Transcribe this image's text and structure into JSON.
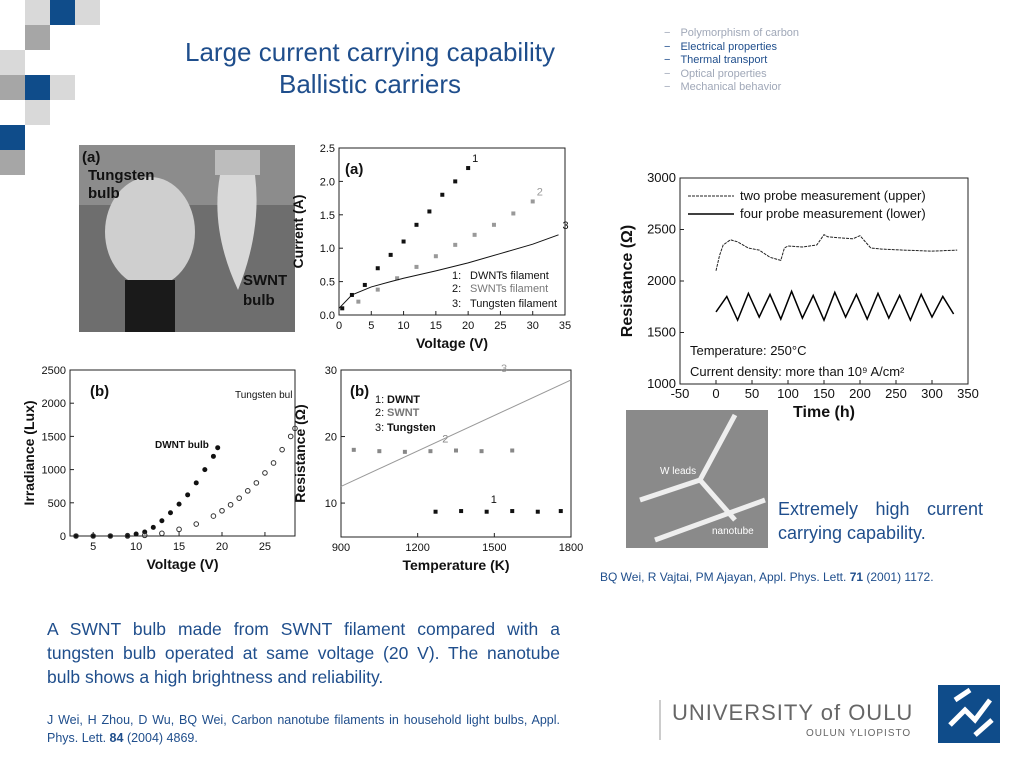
{
  "header": {
    "title_lines": [
      "Large current carrying capability",
      "Ballistic carriers"
    ]
  },
  "nav": {
    "bullet": "−",
    "items": [
      {
        "text": "Polymorphism of carbon",
        "active": false
      },
      {
        "text": "Electrical properties",
        "active": true
      },
      {
        "text": "Thermal transport",
        "active": true
      },
      {
        "text": "Optical properties",
        "active": false
      },
      {
        "text": "Mechanical behavior",
        "active": false
      }
    ]
  },
  "photo": {
    "panel": "(a)",
    "left_label": [
      "Tungsten",
      "bulb"
    ],
    "right_label": [
      "SWNT",
      "bulb"
    ]
  },
  "chart_data": [
    {
      "type": "line",
      "panel": "(a)",
      "x_label": "Voltage (V)",
      "y_label": "Current (A)",
      "xlim": [
        0,
        35
      ],
      "ylim": [
        0,
        2.5
      ],
      "xticks": [
        0,
        5,
        10,
        15,
        20,
        25,
        30,
        35
      ],
      "yticks": [
        {
          "value": 0,
          "label": "0.0"
        },
        0.5,
        {
          "value": 1,
          "label": "1.0"
        },
        1.5,
        {
          "value": 2,
          "label": "2.0"
        },
        2.5
      ],
      "series": [
        {
          "key": "1:",
          "name": "DWNTs filament",
          "curve_label": "1",
          "marker": "filled-square",
          "color": "#111111",
          "x": [
            0.5,
            2,
            4,
            6,
            8,
            10,
            12,
            14,
            16,
            18,
            20
          ],
          "values": [
            0.1,
            0.3,
            0.45,
            0.7,
            0.9,
            1.1,
            1.35,
            1.55,
            1.8,
            2.0,
            2.2
          ]
        },
        {
          "key": "2:",
          "name": "SWNTs filament",
          "curve_label": "2",
          "marker": "filled-square",
          "color": "#999999",
          "x": [
            3,
            6,
            9,
            12,
            15,
            18,
            21,
            24,
            27,
            30
          ],
          "values": [
            0.2,
            0.38,
            0.55,
            0.72,
            0.88,
            1.05,
            1.2,
            1.35,
            1.52,
            1.7
          ]
        },
        {
          "key": "3:",
          "name": "Tungsten filament",
          "curve_label": "3",
          "marker": "line",
          "color": "#111111",
          "x": [
            0,
            2,
            5,
            8,
            10,
            15,
            20,
            25,
            30,
            34
          ],
          "values": [
            0.1,
            0.3,
            0.42,
            0.5,
            0.55,
            0.66,
            0.78,
            0.92,
            1.06,
            1.2
          ]
        }
      ]
    },
    {
      "type": "line",
      "panel": "(b)",
      "x_label": "Voltage (V)",
      "y_label": "Irradiance (Lux)",
      "xlim": [
        2.3,
        28.5
      ],
      "ylim": [
        0,
        2500
      ],
      "xticks": [
        5,
        10,
        15,
        20,
        25
      ],
      "yticks": [
        0,
        500,
        1000,
        1500,
        2000,
        2500
      ],
      "series": [
        {
          "name": "DWNT bulb",
          "marker": "filled-circle",
          "color": "#111111",
          "x": [
            3,
            5,
            7,
            9,
            10,
            11,
            12,
            13,
            14,
            15,
            16,
            17,
            18,
            19,
            19.5
          ],
          "values": [
            0,
            0,
            0,
            10,
            30,
            60,
            130,
            230,
            350,
            480,
            620,
            800,
            1000,
            1200,
            1330
          ]
        },
        {
          "name": "Tungsten bul",
          "marker": "open-circle",
          "color": "#333333",
          "x": [
            3,
            5,
            7,
            9,
            11,
            13,
            15,
            17,
            19,
            20,
            21,
            22,
            23,
            24,
            25,
            26,
            27,
            28,
            28.5
          ],
          "values": [
            0,
            0,
            0,
            0,
            10,
            40,
            100,
            180,
            300,
            380,
            470,
            570,
            680,
            800,
            950,
            1100,
            1300,
            1500,
            1620
          ]
        }
      ]
    },
    {
      "type": "line",
      "panel": "(b)",
      "x_label": "Temperature (K)",
      "y_label": "Resistance (Ω)",
      "xlim": [
        900,
        1800
      ],
      "ylim": [
        4.9,
        30
      ],
      "xticks": [
        900,
        1200,
        1500,
        1800
      ],
      "yticks": [
        10,
        20,
        30
      ],
      "series": [
        {
          "key": "1:",
          "name": "DWNT",
          "curve_label": "1",
          "marker": "filled-square",
          "color": "#111111",
          "x": [
            1270,
            1370,
            1470,
            1570,
            1670,
            1760
          ],
          "values": [
            8.7,
            8.8,
            8.7,
            8.8,
            8.7,
            8.8
          ]
        },
        {
          "key": "2:",
          "name": "SWNT",
          "curve_label": "2",
          "marker": "filled-square",
          "color": "#888888",
          "x": [
            950,
            1050,
            1150,
            1250,
            1350,
            1450,
            1570
          ],
          "values": [
            18,
            17.8,
            17.7,
            17.8,
            17.9,
            17.8,
            17.9
          ]
        },
        {
          "key": "3:",
          "name": "Tungsten",
          "curve_label": "3",
          "marker": "line",
          "color": "#999999",
          "x": [
            900,
            1800
          ],
          "values": [
            12.5,
            28.5
          ]
        }
      ]
    },
    {
      "type": "line",
      "x_label": "Time (h)",
      "y_label": "Resistance (Ω)",
      "xlim": [
        -50,
        350
      ],
      "ylim": [
        1000,
        3000
      ],
      "xticks": [
        -50,
        0,
        50,
        100,
        150,
        200,
        250,
        300,
        350
      ],
      "yticks": [
        1000,
        1500,
        2000,
        2500,
        3000
      ],
      "annotations": [
        "Temperature: 250°C",
        "Current density: more than 10⁹ A/cm²"
      ],
      "series": [
        {
          "name": "two probe measurement (upper)",
          "marker": "line",
          "color": "#222222",
          "x": [
            0,
            5,
            10,
            20,
            30,
            45,
            60,
            75,
            90,
            95,
            100,
            120,
            140,
            150,
            155,
            170,
            190,
            200,
            215,
            230,
            260,
            300,
            335
          ],
          "values": [
            2100,
            2250,
            2350,
            2400,
            2380,
            2320,
            2300,
            2230,
            2200,
            2320,
            2340,
            2330,
            2350,
            2450,
            2430,
            2420,
            2410,
            2440,
            2320,
            2310,
            2300,
            2290,
            2300
          ]
        },
        {
          "name": "four probe measurement (lower)",
          "marker": "line",
          "color": "#000000",
          "x": [
            0,
            15,
            30,
            45,
            60,
            75,
            90,
            105,
            120,
            135,
            150,
            165,
            180,
            195,
            210,
            225,
            240,
            255,
            270,
            285,
            300,
            315,
            330
          ],
          "values": [
            1700,
            1850,
            1620,
            1880,
            1650,
            1870,
            1630,
            1900,
            1640,
            1860,
            1620,
            1890,
            1650,
            1870,
            1630,
            1880,
            1640,
            1860,
            1620,
            1870,
            1650,
            1850,
            1680
          ]
        }
      ]
    }
  ],
  "sem_image": {
    "labels": [
      "W leads",
      "nanotube"
    ]
  },
  "highlight": [
    "Extremely high current",
    "carrying capability."
  ],
  "reference_top": {
    "text": "BQ Wei, R Vajtai, PM Ajayan, Appl. Phys. Lett.",
    "volume": "71",
    "rest": "(2001) 1172."
  },
  "description": "A SWNT bulb made from SWNT filament compared with a tungsten bulb operated at same voltage (20 V). The nanotube bulb shows a high brightness and reliability.",
  "reference_bottom": {
    "text": "J Wei, H Zhou, D Wu, BQ Wei, Carbon nanotube filaments in household light bulbs, Appl. Phys. Lett.",
    "volume": "84",
    "rest": "(2004) 4869."
  },
  "logo": {
    "name": "UNIVERSITY of OULU",
    "subtitle": "OULUN YLIOPISTO"
  }
}
